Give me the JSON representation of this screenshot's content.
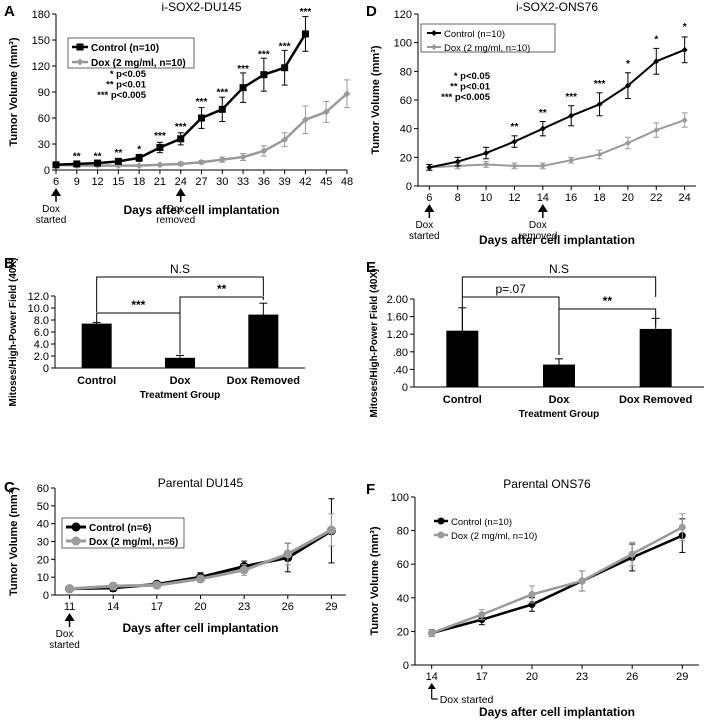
{
  "figure": {
    "theme": {
      "black": "#000000",
      "gray": "#9a9a9a"
    },
    "panels": {
      "A": {
        "letter": "A",
        "chart_data": {
          "type": "line",
          "title": "i-SOX2-DU145",
          "xlabel": "Days after cell implantation",
          "ylabel": "Tumor Volume (mm³)",
          "x": [
            6,
            9,
            12,
            15,
            18,
            21,
            24,
            27,
            30,
            33,
            36,
            39,
            42,
            45,
            48
          ],
          "ylim": [
            0,
            180
          ],
          "yticks": [
            0,
            30,
            60,
            90,
            120,
            150,
            180
          ],
          "series": [
            {
              "name": "Control (n=10)",
              "color": "#000000",
              "marker": "square",
              "x": [
                6,
                9,
                12,
                15,
                18,
                21,
                24,
                27,
                30,
                33,
                36,
                39,
                42
              ],
              "values": [
                6,
                7,
                8,
                10,
                14,
                26,
                36,
                60,
                70,
                95,
                110,
                118,
                157
              ],
              "errors": [
                2,
                2,
                2,
                3,
                4,
                6,
                7,
                12,
                14,
                17,
                19,
                20,
                20
              ]
            },
            {
              "name": "Dox (2 mg/ml, n=10)",
              "color": "#9a9a9a",
              "marker": "diamond",
              "x": [
                6,
                9,
                12,
                15,
                18,
                21,
                24,
                27,
                30,
                33,
                36,
                39,
                42,
                45,
                48
              ],
              "values": [
                6,
                5,
                5,
                5,
                5,
                6,
                7,
                9,
                12,
                15,
                22,
                35,
                58,
                67,
                88
              ],
              "errors": [
                1,
                1,
                1,
                1,
                1,
                1,
                2,
                2,
                3,
                4,
                6,
                8,
                16,
                12,
                16
              ]
            }
          ],
          "significance": [
            {
              "x": 9,
              "label": "**",
              "y": 12
            },
            {
              "x": 12,
              "label": "**",
              "y": 12
            },
            {
              "x": 15,
              "label": "**",
              "y": 16
            },
            {
              "x": 18,
              "label": "*",
              "y": 20
            },
            {
              "x": 21,
              "label": "***",
              "y": 36
            },
            {
              "x": 24,
              "label": "***",
              "y": 46
            },
            {
              "x": 27,
              "label": "***",
              "y": 75
            },
            {
              "x": 30,
              "label": "***",
              "y": 86
            },
            {
              "x": 33,
              "label": "***",
              "y": 113
            },
            {
              "x": 36,
              "label": "***",
              "y": 130
            },
            {
              "x": 39,
              "label": "***",
              "y": 139
            },
            {
              "x": 42,
              "label": "***",
              "y": 179
            }
          ],
          "pvalue_legend": [
            "* p<0.05",
            "** p<0.01",
            "*** p<0.005"
          ],
          "annotations": [
            {
              "x": 6,
              "lines": [
                "Dox",
                "started"
              ]
            },
            {
              "x": 24,
              "lines": [
                "Dox",
                "removed"
              ]
            }
          ]
        }
      },
      "B": {
        "letter": "B",
        "chart_data": {
          "type": "bar",
          "title": "",
          "xlabel": "Treatment Group",
          "ylabel": "Mitoses/High-Power Field (40X)",
          "categories": [
            "Control",
            "Dox",
            "Dox Removed"
          ],
          "values": [
            7.4,
            1.7,
            8.9
          ],
          "errors": [
            0.2,
            0.4,
            1.9
          ],
          "ylim": [
            0,
            12
          ],
          "yticks": [
            0,
            2,
            4,
            6,
            8,
            10,
            12
          ],
          "ytick_labels": [
            "0",
            "2.0",
            "4.0",
            "6.0",
            "8.0",
            "10.0",
            "12.0"
          ],
          "brackets": [
            {
              "from": 0,
              "to": 2,
              "label": "N.S"
            },
            {
              "from": 0,
              "to": 1,
              "label": "***"
            },
            {
              "from": 1,
              "to": 2,
              "label": "**"
            }
          ]
        }
      },
      "C": {
        "letter": "C",
        "chart_data": {
          "type": "line",
          "title": "Parental DU145",
          "xlabel": "Days after cell implantation",
          "ylabel": "Tumor Volume (mm³)",
          "x": [
            11,
            14,
            17,
            20,
            23,
            26,
            29
          ],
          "ylim": [
            0,
            60
          ],
          "yticks": [
            0,
            10,
            20,
            30,
            40,
            50,
            60
          ],
          "series": [
            {
              "name": "Control (n=6)",
              "color": "#000000",
              "marker": "circle",
              "x": [
                11,
                14,
                17,
                20,
                23,
                26,
                29
              ],
              "values": [
                3.5,
                4,
                6,
                10,
                16,
                21,
                36
              ],
              "errors": [
                1,
                2,
                1.5,
                2.5,
                3,
                8,
                18
              ]
            },
            {
              "name": "Dox (2 mg/ml, n=6)",
              "color": "#9a9a9a",
              "marker": "circle",
              "x": [
                11,
                14,
                17,
                20,
                23,
                26,
                29
              ],
              "values": [
                3.5,
                5,
                5.5,
                9,
                14,
                23,
                36.5
              ],
              "errors": [
                1,
                2,
                1.5,
                2,
                3,
                6,
                9
              ]
            }
          ],
          "annotations": [
            {
              "x": 11,
              "lines": [
                "Dox",
                "started"
              ]
            }
          ]
        }
      },
      "D": {
        "letter": "D",
        "chart_data": {
          "type": "line",
          "title": "i-SOX2-ONS76",
          "xlabel": "Days after cell implantation",
          "ylabel": "Tumor Volume (mm³)",
          "x": [
            6,
            8,
            10,
            12,
            14,
            16,
            18,
            20,
            22,
            24
          ],
          "ylim": [
            0,
            120
          ],
          "yticks": [
            0,
            20,
            40,
            60,
            80,
            100,
            120
          ],
          "series": [
            {
              "name": "Control (n=10)",
              "color": "#000000",
              "marker": "diamond",
              "x": [
                6,
                8,
                10,
                12,
                14,
                16,
                18,
                20,
                22,
                24
              ],
              "values": [
                13,
                17,
                23,
                31,
                40,
                49,
                57,
                70,
                87,
                95
              ],
              "errors": [
                2,
                3,
                4,
                4,
                5,
                7,
                8,
                9,
                9,
                9
              ]
            },
            {
              "name": "Dox (2 mg/ml, n=10)",
              "color": "#9a9a9a",
              "marker": "diamond",
              "x": [
                6,
                8,
                10,
                12,
                14,
                16,
                18,
                20,
                22,
                24
              ],
              "values": [
                13,
                14,
                15,
                14,
                14,
                18,
                22,
                30,
                39,
                46
              ],
              "errors": [
                2,
                2,
                2,
                2,
                2,
                2,
                3,
                4,
                5,
                5
              ]
            }
          ],
          "significance": [
            {
              "x": 12,
              "label": "**",
              "y": 39
            },
            {
              "x": 14,
              "label": "**",
              "y": 49
            },
            {
              "x": 16,
              "label": "***",
              "y": 60
            },
            {
              "x": 18,
              "label": "***",
              "y": 69
            },
            {
              "x": 20,
              "label": "*",
              "y": 83
            },
            {
              "x": 22,
              "label": "*",
              "y": 100
            },
            {
              "x": 24,
              "label": "*",
              "y": 109
            }
          ],
          "pvalue_legend": [
            "* p<0.05",
            "** p<0.01",
            "*** p<0.005"
          ],
          "annotations": [
            {
              "x": 6,
              "lines": [
                "Dox",
                "started"
              ]
            },
            {
              "x": 14,
              "lines": [
                "Dox",
                "removed"
              ]
            }
          ]
        }
      },
      "E": {
        "letter": "E",
        "chart_data": {
          "type": "bar",
          "title": "",
          "xlabel": "Treatment Group",
          "ylabel": "Mitoses/High-Power Field (40X)",
          "categories": [
            "Control",
            "Dox",
            "Dox Removed"
          ],
          "values": [
            1.28,
            0.51,
            1.32
          ],
          "errors": [
            0.52,
            0.13,
            0.24
          ],
          "ylim": [
            0,
            2.0
          ],
          "yticks": [
            0,
            0.4,
            0.8,
            1.2,
            1.6,
            2.0
          ],
          "ytick_labels": [
            "0",
            ".40",
            ".80",
            "1.20",
            "1.60",
            "2.00"
          ],
          "brackets": [
            {
              "from": 0,
              "to": 2,
              "label": "N.S"
            },
            {
              "from": 0,
              "to": 1,
              "label": "p=.07"
            },
            {
              "from": 1,
              "to": 2,
              "label": "**"
            }
          ]
        }
      },
      "F": {
        "letter": "F",
        "chart_data": {
          "type": "line",
          "title": "Parental ONS76",
          "xlabel": "Days after cell implantation",
          "ylabel": "Tumor Volume (mm³)",
          "x": [
            14,
            17,
            20,
            23,
            26,
            29
          ],
          "ylim": [
            0,
            100
          ],
          "yticks": [
            0,
            20,
            40,
            60,
            80,
            100
          ],
          "series": [
            {
              "name": "Control (n=10)",
              "color": "#000000",
              "marker": "circle",
              "x": [
                14,
                17,
                20,
                23,
                26,
                29
              ],
              "values": [
                19,
                27,
                36,
                50,
                64,
                77
              ],
              "errors": [
                2,
                3,
                4,
                6,
                8,
                10
              ]
            },
            {
              "name": "Dox (2 mg/ml, n=10)",
              "color": "#9a9a9a",
              "marker": "circle",
              "x": [
                14,
                17,
                20,
                23,
                26,
                29
              ],
              "values": [
                19,
                30,
                42,
                50,
                66,
                82
              ],
              "errors": [
                2,
                3,
                5,
                6,
                7,
                8
              ]
            }
          ],
          "annotations": [
            {
              "x": 14,
              "lines": [
                "Dox started"
              ]
            }
          ]
        }
      }
    }
  }
}
